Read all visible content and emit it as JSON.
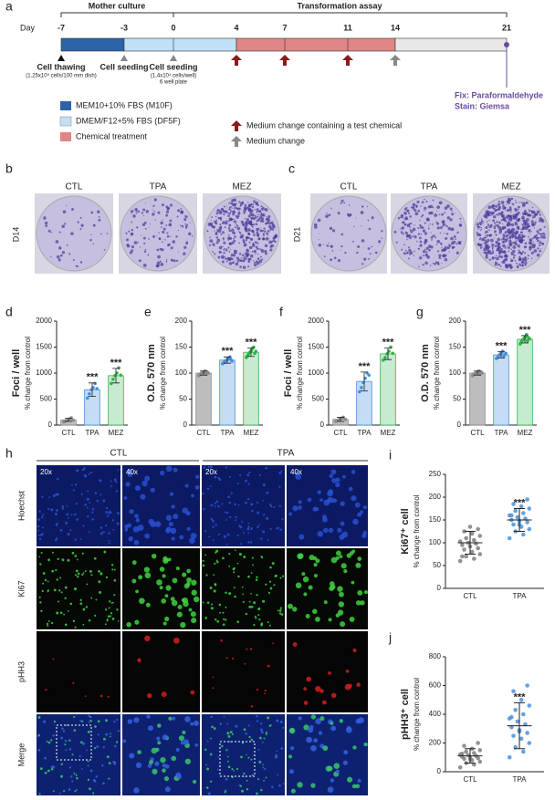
{
  "timeline": {
    "panel": "a",
    "day_label": "Day",
    "days": [
      -7,
      -3,
      0,
      4,
      7,
      11,
      14,
      21
    ],
    "phases": [
      "Mother culture",
      "Transformation assay"
    ],
    "events": [
      "Cell thawing",
      "(1.25x10⁵ cells/100 mm dish)",
      "Cell seeding",
      "Cell seeding",
      "(1.4x10⁴ cells/well)",
      "6 well plate"
    ],
    "fix": "Fix: Paraformaldehyde",
    "stain": "Stain: Giemsa",
    "legend": [
      "MEM10+10% FBS (M10F)",
      "DMEM/F12+5% FBS (DF5F)",
      "Chemical treatment",
      "Medium change containing a test chemical",
      "Medium change"
    ]
  },
  "plates": [
    {
      "panel": "b",
      "day": "D14",
      "labels": [
        "CTL",
        "TPA",
        "MEZ"
      ]
    },
    {
      "panel": "c",
      "day": "D21",
      "labels": [
        "CTL",
        "TPA",
        "MEZ"
      ]
    }
  ],
  "microscopy": {
    "panel": "h",
    "groups": [
      "CTL",
      "TPA"
    ],
    "magnifications": [
      "20x",
      "40x",
      "20x",
      "40x"
    ],
    "stains": [
      "Hoechst",
      "Ki67",
      "pHH3",
      "Merge"
    ]
  },
  "chart_data": [
    {
      "type": "bar",
      "panel": "d",
      "ylabel": "Foci / well",
      "ysublabel": "% change from control",
      "categories": [
        "CTL",
        "TPA",
        "MEZ"
      ],
      "colors": [
        "#bdbdbd",
        "#c4dcf5",
        "#c6ebd0"
      ],
      "edge_colors": [
        "#8a8a8a",
        "#4a8fd6",
        "#2fb34a"
      ],
      "values": [
        100,
        680,
        950
      ],
      "errors": [
        30,
        130,
        140
      ],
      "points": [
        [
          60,
          80,
          100,
          120,
          140,
          95
        ],
        [
          520,
          600,
          680,
          720,
          800,
          700
        ],
        [
          800,
          880,
          950,
          1000,
          1100,
          960
        ]
      ],
      "ylim": [
        0,
        2000
      ],
      "yticks": [
        0,
        500,
        1000,
        1500,
        2000
      ],
      "annotations": [
        null,
        "***",
        "***"
      ]
    },
    {
      "type": "bar",
      "panel": "e",
      "ylabel": "O.D. 570 nm",
      "ysublabel": "% change from control",
      "categories": [
        "CTL",
        "TPA",
        "MEZ"
      ],
      "colors": [
        "#bdbdbd",
        "#c4dcf5",
        "#c6ebd0"
      ],
      "edge_colors": [
        "#8a8a8a",
        "#4a8fd6",
        "#2fb34a"
      ],
      "values": [
        100,
        125,
        140
      ],
      "errors": [
        4,
        6,
        8
      ],
      "points": [
        [
          95,
          97,
          99,
          100,
          101,
          103,
          104,
          98,
          102,
          100
        ],
        [
          118,
          120,
          122,
          124,
          125,
          127,
          129,
          131,
          126,
          123
        ],
        [
          130,
          133,
          136,
          139,
          141,
          144,
          148,
          150,
          138,
          142
        ]
      ],
      "ylim": [
        0,
        200
      ],
      "yticks": [
        0,
        50,
        100,
        150,
        200
      ],
      "annotations": [
        null,
        "***",
        "***"
      ]
    },
    {
      "type": "bar",
      "panel": "f",
      "ylabel": "Foci / well",
      "ysublabel": "% change from control",
      "categories": [
        "CTL",
        "TPA",
        "MEZ"
      ],
      "colors": [
        "#bdbdbd",
        "#c4dcf5",
        "#c6ebd0"
      ],
      "edge_colors": [
        "#8a8a8a",
        "#4a8fd6",
        "#2fb34a"
      ],
      "values": [
        110,
        840,
        1370
      ],
      "errors": [
        40,
        180,
        110
      ],
      "points": [
        [
          70,
          90,
          110,
          130,
          150,
          110
        ],
        [
          640,
          720,
          820,
          900,
          1000,
          960
        ],
        [
          1250,
          1300,
          1370,
          1420,
          1500,
          1380
        ]
      ],
      "ylim": [
        0,
        2000
      ],
      "yticks": [
        0,
        500,
        1000,
        1500,
        2000
      ],
      "annotations": [
        null,
        "***",
        "***"
      ]
    },
    {
      "type": "bar",
      "panel": "g",
      "ylabel": "O.D. 570 nm",
      "ysublabel": "% change from control",
      "categories": [
        "CTL",
        "TPA",
        "MEZ"
      ],
      "colors": [
        "#bdbdbd",
        "#c4dcf5",
        "#c6ebd0"
      ],
      "edge_colors": [
        "#8a8a8a",
        "#4a8fd6",
        "#2fb34a"
      ],
      "values": [
        100,
        135,
        165
      ],
      "errors": [
        4,
        6,
        7
      ],
      "points": [
        [
          95,
          97,
          99,
          100,
          101,
          103,
          104,
          98,
          102,
          100
        ],
        [
          128,
          130,
          133,
          135,
          137,
          140,
          142,
          132,
          136,
          138
        ],
        [
          156,
          160,
          163,
          165,
          167,
          170,
          174,
          162,
          168,
          166
        ]
      ],
      "ylim": [
        0,
        200
      ],
      "yticks": [
        0,
        50,
        100,
        150,
        200
      ],
      "annotations": [
        null,
        "***",
        "***"
      ]
    },
    {
      "type": "dot",
      "panel": "i",
      "ylabel": "Ki67⁺ cell",
      "ysublabel": "% change from control",
      "categories": [
        "CTL",
        "TPA"
      ],
      "colors": [
        "#7f7f7f",
        "#4a90d9"
      ],
      "values": [
        100,
        150
      ],
      "errors": [
        25,
        25
      ],
      "points": [
        [
          60,
          65,
          70,
          75,
          80,
          85,
          88,
          92,
          95,
          98,
          100,
          103,
          106,
          110,
          115,
          120,
          125,
          130,
          135,
          70
        ],
        [
          110,
          118,
          125,
          130,
          135,
          140,
          145,
          148,
          150,
          153,
          156,
          160,
          165,
          170,
          175,
          180,
          185,
          195,
          140,
          160
        ]
      ],
      "ylim": [
        0,
        250
      ],
      "yticks": [
        0,
        50,
        100,
        150,
        200,
        250
      ],
      "annotations": [
        null,
        "***"
      ]
    },
    {
      "type": "dot",
      "panel": "j",
      "ylabel": "pHH3⁺ cell",
      "ysublabel": "% change from control",
      "categories": [
        "CTL",
        "TPA"
      ],
      "colors": [
        "#7f7f7f",
        "#4a90d9"
      ],
      "values": [
        110,
        320
      ],
      "errors": [
        50,
        160
      ],
      "points": [
        [
          30,
          50,
          60,
          70,
          80,
          90,
          95,
          100,
          105,
          110,
          115,
          120,
          130,
          140,
          150,
          160,
          180,
          200,
          85,
          125
        ],
        [
          100,
          140,
          170,
          200,
          230,
          250,
          270,
          290,
          310,
          330,
          350,
          370,
          400,
          430,
          460,
          500,
          560,
          600,
          280,
          380
        ]
      ],
      "ylim": [
        0,
        800
      ],
      "yticks": [
        0,
        200,
        400,
        600,
        800
      ],
      "annotations": [
        null,
        "***"
      ]
    }
  ]
}
